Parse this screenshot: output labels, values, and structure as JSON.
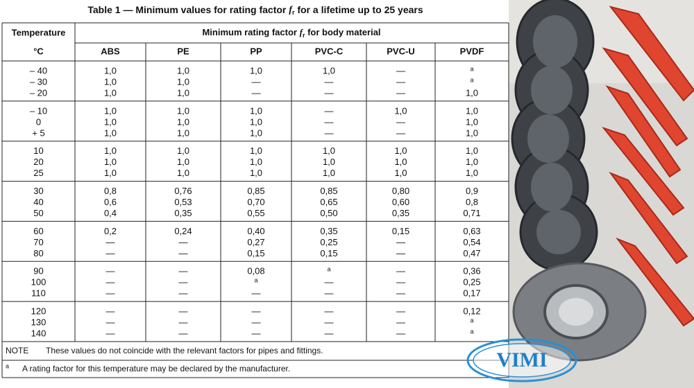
{
  "title": {
    "before": "Table 1 — Minimum values for rating factor",
    "symbol": "f",
    "subscript": "r",
    "after": "for a lifetime up to 25 years"
  },
  "header": {
    "temperature": "Temperature",
    "unit": "°C",
    "group_before": "Minimum rating factor",
    "group_symbol": "f",
    "group_subscript": "r",
    "group_after": "for body material",
    "materials": [
      "ABS",
      "PE",
      "PP",
      "PVC-C",
      "PVC-U",
      "PVDF"
    ]
  },
  "groups": [
    [
      [
        "– 40",
        "1,0",
        "1,0",
        "1,0",
        "1,0",
        "—",
        "a"
      ],
      [
        "– 30",
        "1,0",
        "1,0",
        "—",
        "—",
        "—",
        "a"
      ],
      [
        "– 20",
        "1,0",
        "1,0",
        "—",
        "—",
        "—",
        "1,0"
      ]
    ],
    [
      [
        "– 10",
        "1,0",
        "1,0",
        "1,0",
        "—",
        "1,0",
        "1,0"
      ],
      [
        "0",
        "1,0",
        "1,0",
        "1,0",
        "—",
        "—",
        "1,0"
      ],
      [
        "+ 5",
        "1,0",
        "1,0",
        "1,0",
        "—",
        "—",
        "1,0"
      ]
    ],
    [
      [
        "10",
        "1,0",
        "1,0",
        "1,0",
        "1,0",
        "1,0",
        "1,0"
      ],
      [
        "20",
        "1,0",
        "1,0",
        "1,0",
        "1,0",
        "1,0",
        "1,0"
      ],
      [
        "25",
        "1,0",
        "1,0",
        "1,0",
        "1,0",
        "1,0",
        "1,0"
      ]
    ],
    [
      [
        "30",
        "0,8",
        "0,76",
        "0,85",
        "0,85",
        "0,80",
        "0,9"
      ],
      [
        "40",
        "0,6",
        "0,53",
        "0,70",
        "0,65",
        "0,60",
        "0,8"
      ],
      [
        "50",
        "0,4",
        "0,35",
        "0,55",
        "0,50",
        "0,35",
        "0,71"
      ]
    ],
    [
      [
        "60",
        "0,2",
        "0,24",
        "0,40",
        "0,35",
        "0,15",
        "0,63"
      ],
      [
        "70",
        "—",
        "—",
        "0,27",
        "0,25",
        "—",
        "0,54"
      ],
      [
        "80",
        "—",
        "—",
        "0,15",
        "0,15",
        "—",
        "0,47"
      ]
    ],
    [
      [
        "90",
        "—",
        "—",
        "0,08",
        "a",
        "—",
        "0,36"
      ],
      [
        "100",
        "—",
        "—",
        "a",
        "—",
        "—",
        "0,25"
      ],
      [
        "110",
        "—",
        "—",
        "—",
        "—",
        "—",
        "0,17"
      ]
    ],
    [
      [
        "120",
        "—",
        "—",
        "—",
        "—",
        "—",
        "0,12"
      ],
      [
        "130",
        "—",
        "—",
        "—",
        "—",
        "—",
        "a"
      ],
      [
        "140",
        "—",
        "—",
        "—",
        "—",
        "—",
        "a"
      ]
    ]
  ],
  "note": {
    "label": "NOTE",
    "text": "These values do not coincide with the relevant factors for pipes and fittings."
  },
  "footnote": {
    "mark": "a",
    "text": "A rating factor for this temperature may be declared by the manufacturer."
  },
  "logo": "VIMI"
}
